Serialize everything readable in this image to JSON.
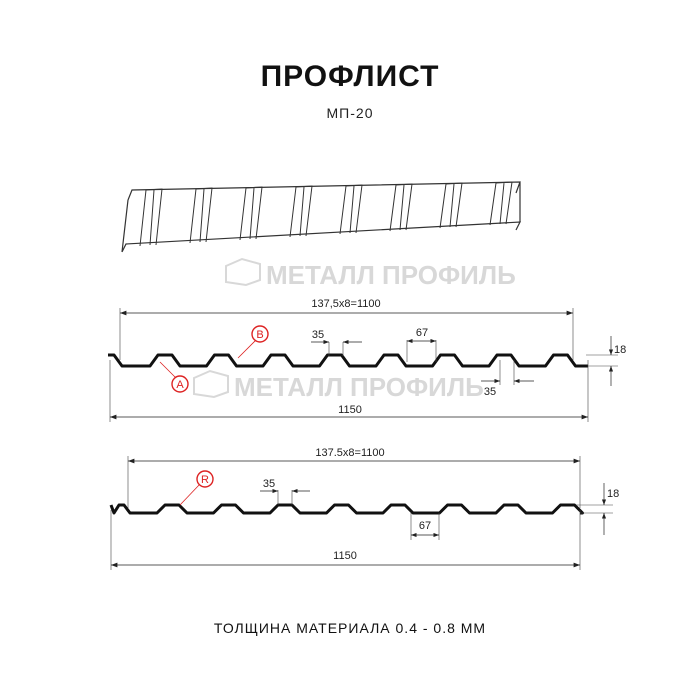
{
  "header": {
    "title": "ПРОФЛИСТ",
    "subtitle": "МП-20"
  },
  "watermark": "МЕТАЛЛ ПРОФИЛЬ",
  "profile_a": {
    "pitch_dim": "137,5x8=1100",
    "total_dim": "1150",
    "crest_dim": "35",
    "valley_dim": "35",
    "top_dim": "67",
    "height_dim": "18",
    "label_a": "A",
    "label_b": "B"
  },
  "profile_r": {
    "pitch_dim": "137.5x8=1100",
    "total_dim": "1150",
    "crest_dim": "35",
    "bottom_dim": "67",
    "height_dim": "18",
    "label_r": "R"
  },
  "footer": {
    "thickness": "ТОЛЩИНА МАТЕРИАЛА 0.4 - 0.8 ММ"
  },
  "colors": {
    "line": "#111111",
    "callout": "#dd2222",
    "watermark": "#d8d8d8"
  }
}
